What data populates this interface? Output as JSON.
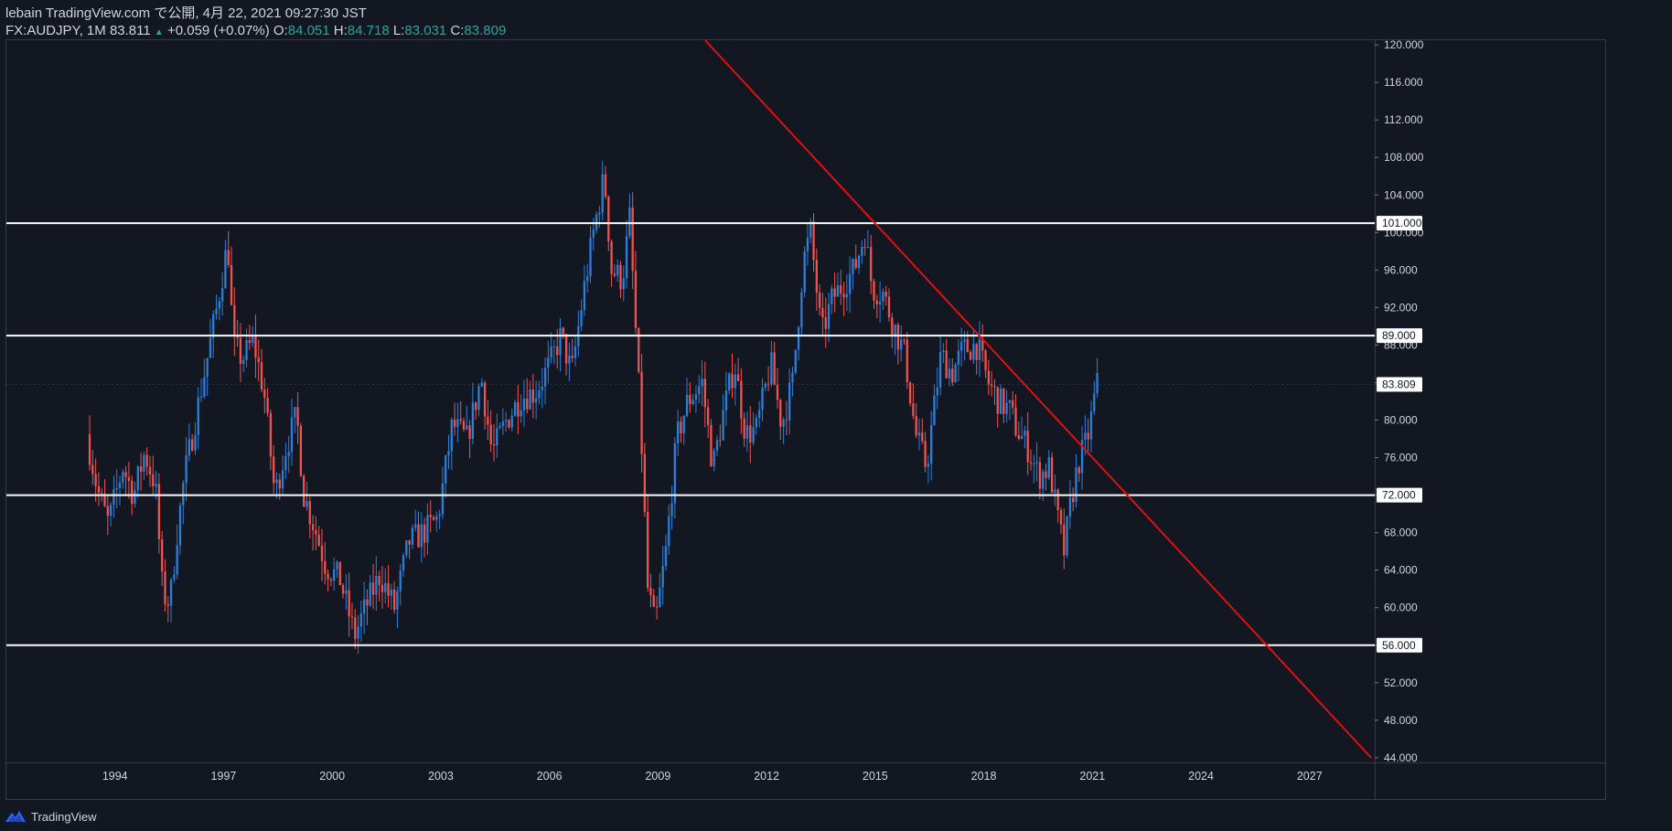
{
  "header": {
    "line1": "lebain TradingView.com で公開, 4月 22, 2021 09:27:30 JST",
    "symbol": "FX:AUDJPY, 1M",
    "last": "83.811",
    "change_arrow": "▲",
    "change": "+0.059 (+0.07%)",
    "o_label": "O:",
    "o_value": "84.051",
    "h_label": "H:",
    "h_value": "84.718",
    "l_label": "L:",
    "l_value": "83.031",
    "c_label": "C:",
    "c_value": "83.809"
  },
  "footer": {
    "brand": "TradingView",
    "icon": "tradingview-logo-icon"
  },
  "colors": {
    "background": "#131722",
    "up": "#2a7fd8",
    "down": "#ef5350",
    "level_line": "#ffffff",
    "trend_line": "#e01010",
    "axis_text": "#d1d4dc",
    "teal": "#26a69a"
  },
  "chart_data": {
    "type": "candlestick",
    "symbol": "FX:AUDJPY",
    "interval": "1M",
    "x_range": [
      1991.0,
      2028.8
    ],
    "y_range": [
      43.5,
      120.5
    ],
    "y_ticks": [
      "120.000",
      "116.000",
      "112.000",
      "108.000",
      "104.000",
      "100.000",
      "96.000",
      "92.000",
      "88.000",
      "84.000",
      "80.000",
      "76.000",
      "72.000",
      "68.000",
      "64.000",
      "60.000",
      "56.000",
      "52.000",
      "48.000",
      "44.000"
    ],
    "x_ticks": [
      "1994",
      "1997",
      "2000",
      "2003",
      "2006",
      "2009",
      "2012",
      "2015",
      "2018",
      "2021",
      "2024",
      "2027"
    ],
    "horizontal_levels": [
      {
        "price": 101.0,
        "label": "101.000"
      },
      {
        "price": 89.0,
        "label": "89.000"
      },
      {
        "price": 72.0,
        "label": "72.000"
      },
      {
        "price": 56.0,
        "label": "56.000"
      }
    ],
    "last_price": {
      "price": 83.809,
      "label": "83.809"
    },
    "trend_line": {
      "x1": 2010.3,
      "y1": 120.5,
      "x2": 2028.7,
      "y2": 44.0
    },
    "price_path": [
      [
        1993.3,
        78.5
      ],
      [
        1993.6,
        72.5
      ],
      [
        1993.9,
        69.0
      ],
      [
        1994.3,
        75.0
      ],
      [
        1994.6,
        72.0
      ],
      [
        1994.9,
        76.5
      ],
      [
        1995.2,
        73.0
      ],
      [
        1995.4,
        61.5
      ],
      [
        1995.6,
        60.5
      ],
      [
        1995.8,
        68.0
      ],
      [
        1996.0,
        74.0
      ],
      [
        1996.3,
        80.0
      ],
      [
        1996.6,
        86.0
      ],
      [
        1996.9,
        92.0
      ],
      [
        1997.2,
        99.0
      ],
      [
        1997.35,
        88.0
      ],
      [
        1997.6,
        86.5
      ],
      [
        1997.9,
        88.5
      ],
      [
        1998.2,
        83.0
      ],
      [
        1998.5,
        72.0
      ],
      [
        1998.8,
        77.0
      ],
      [
        1999.1,
        80.5
      ],
      [
        1999.3,
        72.0
      ],
      [
        1999.6,
        68.5
      ],
      [
        1999.9,
        64.5
      ],
      [
        2000.3,
        63.0
      ],
      [
        2000.7,
        57.0
      ],
      [
        2001.0,
        60.0
      ],
      [
        2001.4,
        63.5
      ],
      [
        2001.8,
        60.0
      ],
      [
        2002.2,
        67.0
      ],
      [
        2002.6,
        68.0
      ],
      [
        2003.0,
        69.5
      ],
      [
        2003.4,
        79.5
      ],
      [
        2003.8,
        78.0
      ],
      [
        2004.2,
        84.5
      ],
      [
        2004.5,
        76.5
      ],
      [
        2004.9,
        80.0
      ],
      [
        2005.3,
        82.5
      ],
      [
        2005.7,
        83.0
      ],
      [
        2006.1,
        86.0
      ],
      [
        2006.4,
        89.0
      ],
      [
        2006.7,
        85.0
      ],
      [
        2007.0,
        93.0
      ],
      [
        2007.3,
        100.0
      ],
      [
        2007.6,
        106.0
      ],
      [
        2007.8,
        96.0
      ],
      [
        2008.1,
        95.0
      ],
      [
        2008.3,
        101.5
      ],
      [
        2008.6,
        80.0
      ],
      [
        2008.8,
        62.0
      ],
      [
        2009.0,
        58.0
      ],
      [
        2009.3,
        66.0
      ],
      [
        2009.6,
        78.0
      ],
      [
        2009.9,
        82.0
      ],
      [
        2010.3,
        84.0
      ],
      [
        2010.6,
        75.0
      ],
      [
        2010.9,
        81.0
      ],
      [
        2011.2,
        86.0
      ],
      [
        2011.5,
        78.5
      ],
      [
        2011.8,
        79.0
      ],
      [
        2012.2,
        86.0
      ],
      [
        2012.5,
        79.5
      ],
      [
        2012.8,
        84.0
      ],
      [
        2013.1,
        97.0
      ],
      [
        2013.3,
        100.0
      ],
      [
        2013.6,
        89.0
      ],
      [
        2013.9,
        93.0
      ],
      [
        2014.2,
        94.5
      ],
      [
        2014.5,
        96.0
      ],
      [
        2014.8,
        100.0
      ],
      [
        2015.0,
        94.0
      ],
      [
        2015.3,
        93.5
      ],
      [
        2015.6,
        90.0
      ],
      [
        2015.9,
        87.0
      ],
      [
        2016.2,
        78.5
      ],
      [
        2016.5,
        75.0
      ],
      [
        2016.9,
        87.0
      ],
      [
        2017.2,
        85.0
      ],
      [
        2017.5,
        87.5
      ],
      [
        2017.9,
        88.0
      ],
      [
        2018.2,
        84.0
      ],
      [
        2018.5,
        82.0
      ],
      [
        2018.8,
        81.0
      ],
      [
        2019.0,
        79.0
      ],
      [
        2019.3,
        77.0
      ],
      [
        2019.6,
        74.0
      ],
      [
        2019.9,
        75.0
      ],
      [
        2020.1,
        70.0
      ],
      [
        2020.3,
        66.0
      ],
      [
        2020.5,
        71.5
      ],
      [
        2020.7,
        75.5
      ],
      [
        2020.9,
        77.5
      ],
      [
        2021.0,
        79.0
      ],
      [
        2021.2,
        83.8
      ]
    ]
  }
}
